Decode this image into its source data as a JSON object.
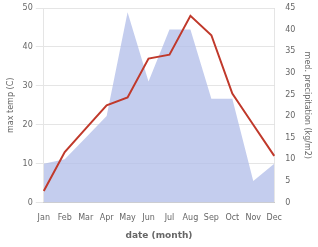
{
  "chart_data": {
    "type": "line",
    "xlabel": "date (month)",
    "ylabel": "max temp (C)",
    "y2label": "med. precipitation (kg/m2)",
    "categories": [
      "Jan",
      "Feb",
      "Mar",
      "Apr",
      "May",
      "Jun",
      "Jul",
      "Aug",
      "Sep",
      "Oct",
      "Nov",
      "Dec"
    ],
    "series": [
      {
        "type": "area",
        "axis": "y2",
        "color": "#b0bce8",
        "values": [
          9,
          10,
          15,
          20,
          44,
          28,
          40,
          40,
          24,
          24,
          5,
          9
        ]
      },
      {
        "type": "line",
        "color": "#c0392b",
        "values": [
          3,
          13,
          19,
          25,
          27,
          37,
          38,
          48,
          43,
          28,
          20,
          12
        ]
      }
    ],
    "ylim": [
      0,
      50
    ],
    "yticks": [
      0,
      10,
      20,
      30,
      40,
      50
    ],
    "y2lim": [
      0,
      45
    ],
    "y2ticks": [
      0,
      5,
      10,
      15,
      20,
      25,
      30,
      35,
      40,
      45
    ],
    "grid": true
  }
}
